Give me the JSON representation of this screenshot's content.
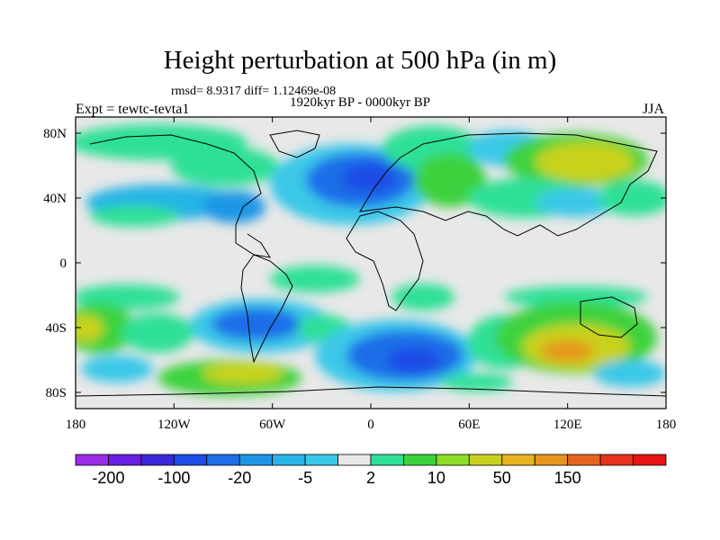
{
  "title": "Height perturbation at 500 hPa (in m)",
  "stats": "rmsd= 8.9317 diff= 1.12469e-08",
  "period": "1920kyr BP - 0000kyr BP",
  "experiment": "Expt = tewtc-tevta1",
  "season": "JJA",
  "map": {
    "lon_ticks": [
      "180",
      "120W",
      "60W",
      "0",
      "60E",
      "120E",
      "180"
    ],
    "lat_ticks": [
      "80N",
      "40N",
      "0",
      "40S",
      "80S"
    ],
    "lon_range": [
      -180,
      180
    ],
    "lat_range": [
      -90,
      90
    ]
  },
  "colorbar": {
    "colors": [
      "#9a2de8",
      "#6a1ee0",
      "#3a28d8",
      "#1f4be6",
      "#1e6ee8",
      "#1e96e6",
      "#28b4e6",
      "#3ac8e8",
      "#e8e8e8",
      "#2ee096",
      "#3cd23c",
      "#8cdc28",
      "#c8d21e",
      "#e6b41e",
      "#e6961e",
      "#e6641e",
      "#e6321e",
      "#e61414"
    ],
    "tick_labels": [
      "-200",
      "-100",
      "-20",
      "-5",
      "2",
      "10",
      "50",
      "150"
    ]
  }
}
